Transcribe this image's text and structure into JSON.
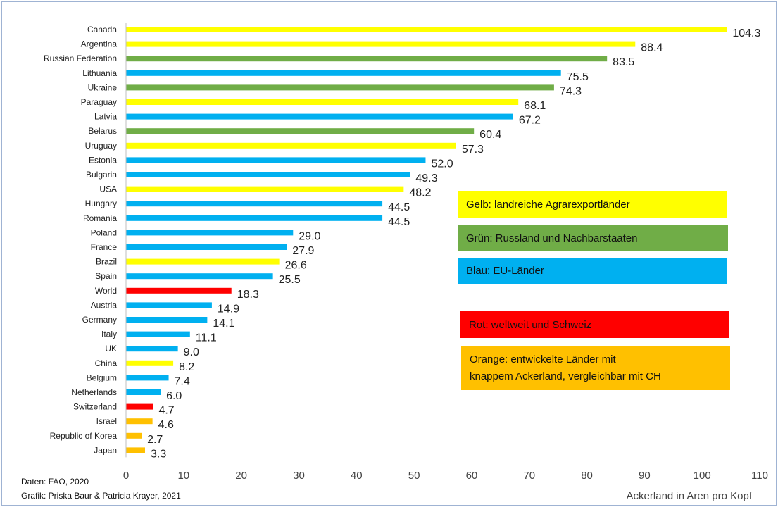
{
  "chart_data": {
    "type": "bar",
    "orientation": "horizontal",
    "xlabel": "Ackerland in Aren pro Kopf",
    "xlim": [
      0,
      110
    ],
    "xticks": [
      0,
      10,
      20,
      30,
      40,
      50,
      60,
      70,
      80,
      90,
      100,
      110
    ],
    "categories": [
      "Canada",
      "Argentina",
      "Russian Federation",
      "Lithuania",
      "Ukraine",
      "Paraguay",
      "Latvia",
      "Belarus",
      "Uruguay",
      "Estonia",
      "Bulgaria",
      "USA",
      "Hungary",
      "Romania",
      "Poland",
      "France",
      "Brazil",
      "Spain",
      "World",
      "Austria",
      "Germany",
      "Italy",
      "UK",
      "China",
      "Belgium",
      "Netherlands",
      "Switzerland",
      "Israel",
      "Republic of Korea",
      "Japan"
    ],
    "values": [
      104.3,
      88.4,
      83.5,
      75.5,
      74.3,
      68.1,
      67.2,
      60.4,
      57.3,
      52.0,
      49.3,
      48.2,
      44.5,
      44.5,
      29.0,
      27.9,
      26.6,
      25.5,
      18.3,
      14.9,
      14.1,
      11.1,
      9.0,
      8.2,
      7.4,
      6.0,
      4.7,
      4.6,
      2.7,
      3.3
    ],
    "value_labels": [
      "104.3",
      "88.4",
      "83.5",
      "75.5",
      "74.3",
      "68.1",
      "67.2",
      "60.4",
      "57.3",
      "52.0",
      "49.3",
      "48.2",
      "44.5",
      "44.5",
      "29.0",
      "27.9",
      "26.6",
      "25.5",
      "18.3",
      "14.9",
      "14.1",
      "11.1",
      "9.0",
      "8.2",
      "7.4",
      "6.0",
      "4.7",
      "4.6",
      "2.7",
      "3.3"
    ],
    "bar_colors": [
      "#ffff00",
      "#ffff00",
      "#70ad47",
      "#00b0f0",
      "#70ad47",
      "#ffff00",
      "#00b0f0",
      "#70ad47",
      "#ffff00",
      "#00b0f0",
      "#00b0f0",
      "#ffff00",
      "#00b0f0",
      "#00b0f0",
      "#00b0f0",
      "#00b0f0",
      "#ffff00",
      "#00b0f0",
      "#ff0000",
      "#00b0f0",
      "#00b0f0",
      "#00b0f0",
      "#00b0f0",
      "#ffff00",
      "#00b0f0",
      "#00b0f0",
      "#ff0000",
      "#ffc000",
      "#ffc000",
      "#ffc000"
    ],
    "grid": false,
    "legend_placement": "right"
  },
  "legend": [
    {
      "text": "Gelb: landreiche Agrarexportländer",
      "color": "#ffff00"
    },
    {
      "text": "Grün: Russland und Nachbarstaaten",
      "color": "#70ad47"
    },
    {
      "text": "Blau: EU-Länder",
      "color": "#00b0f0"
    },
    {
      "text": "Rot: weltweit und Schweiz",
      "color": "#ff0000"
    },
    {
      "text": "Orange: entwickelte Länder mit\nknappem Ackerland, vergleichbar mit CH",
      "color": "#ffc000"
    }
  ],
  "notes": {
    "source": "Daten: FAO, 2020",
    "credit": "Grafik: Priska Baur & Patricia Krayer, 2021"
  }
}
